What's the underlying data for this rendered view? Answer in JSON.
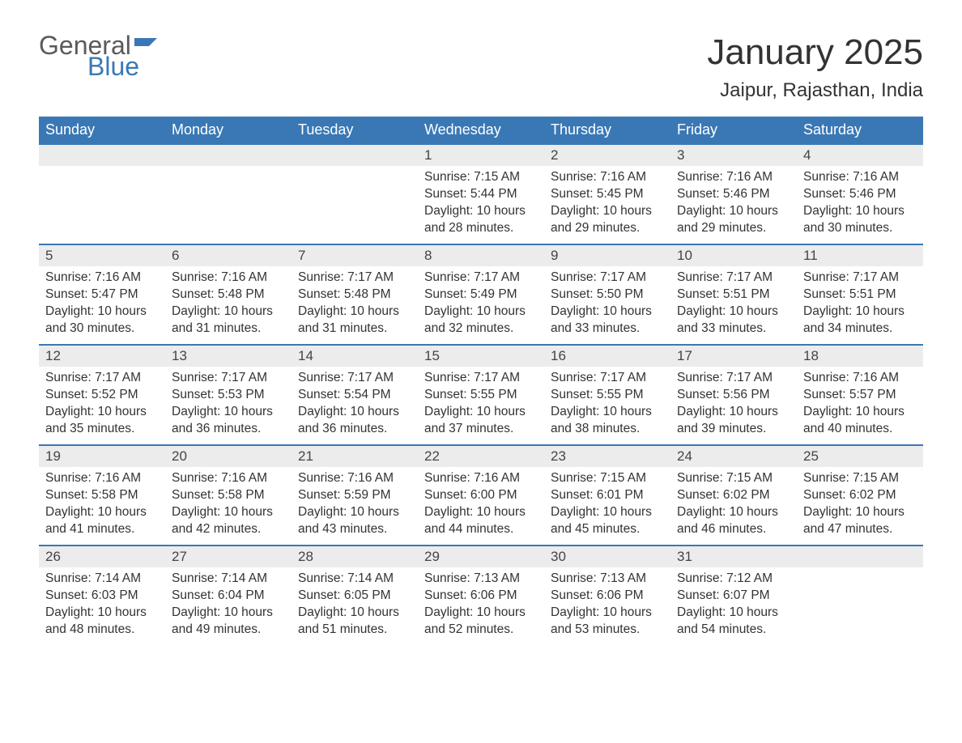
{
  "logo": {
    "general": "General",
    "blue": "Blue",
    "flag_color": "#3a78b5"
  },
  "title": "January 2025",
  "location": "Jaipur, Rajasthan, India",
  "columns": [
    "Sunday",
    "Monday",
    "Tuesday",
    "Wednesday",
    "Thursday",
    "Friday",
    "Saturday"
  ],
  "colors": {
    "header_bg": "#3a78b5",
    "header_text": "#ffffff",
    "daynum_bg": "#ececec",
    "row_border": "#3a78b5",
    "text": "#333333",
    "page_bg": "#ffffff"
  },
  "fonts": {
    "title_size_pt": 33,
    "location_size_pt": 18,
    "header_size_pt": 14,
    "daynum_size_pt": 13,
    "body_size_pt": 12
  },
  "weeks": [
    [
      null,
      null,
      null,
      {
        "d": "1",
        "sr": "Sunrise: 7:15 AM",
        "ss": "Sunset: 5:44 PM",
        "dl1": "Daylight: 10 hours",
        "dl2": "and 28 minutes."
      },
      {
        "d": "2",
        "sr": "Sunrise: 7:16 AM",
        "ss": "Sunset: 5:45 PM",
        "dl1": "Daylight: 10 hours",
        "dl2": "and 29 minutes."
      },
      {
        "d": "3",
        "sr": "Sunrise: 7:16 AM",
        "ss": "Sunset: 5:46 PM",
        "dl1": "Daylight: 10 hours",
        "dl2": "and 29 minutes."
      },
      {
        "d": "4",
        "sr": "Sunrise: 7:16 AM",
        "ss": "Sunset: 5:46 PM",
        "dl1": "Daylight: 10 hours",
        "dl2": "and 30 minutes."
      }
    ],
    [
      {
        "d": "5",
        "sr": "Sunrise: 7:16 AM",
        "ss": "Sunset: 5:47 PM",
        "dl1": "Daylight: 10 hours",
        "dl2": "and 30 minutes."
      },
      {
        "d": "6",
        "sr": "Sunrise: 7:16 AM",
        "ss": "Sunset: 5:48 PM",
        "dl1": "Daylight: 10 hours",
        "dl2": "and 31 minutes."
      },
      {
        "d": "7",
        "sr": "Sunrise: 7:17 AM",
        "ss": "Sunset: 5:48 PM",
        "dl1": "Daylight: 10 hours",
        "dl2": "and 31 minutes."
      },
      {
        "d": "8",
        "sr": "Sunrise: 7:17 AM",
        "ss": "Sunset: 5:49 PM",
        "dl1": "Daylight: 10 hours",
        "dl2": "and 32 minutes."
      },
      {
        "d": "9",
        "sr": "Sunrise: 7:17 AM",
        "ss": "Sunset: 5:50 PM",
        "dl1": "Daylight: 10 hours",
        "dl2": "and 33 minutes."
      },
      {
        "d": "10",
        "sr": "Sunrise: 7:17 AM",
        "ss": "Sunset: 5:51 PM",
        "dl1": "Daylight: 10 hours",
        "dl2": "and 33 minutes."
      },
      {
        "d": "11",
        "sr": "Sunrise: 7:17 AM",
        "ss": "Sunset: 5:51 PM",
        "dl1": "Daylight: 10 hours",
        "dl2": "and 34 minutes."
      }
    ],
    [
      {
        "d": "12",
        "sr": "Sunrise: 7:17 AM",
        "ss": "Sunset: 5:52 PM",
        "dl1": "Daylight: 10 hours",
        "dl2": "and 35 minutes."
      },
      {
        "d": "13",
        "sr": "Sunrise: 7:17 AM",
        "ss": "Sunset: 5:53 PM",
        "dl1": "Daylight: 10 hours",
        "dl2": "and 36 minutes."
      },
      {
        "d": "14",
        "sr": "Sunrise: 7:17 AM",
        "ss": "Sunset: 5:54 PM",
        "dl1": "Daylight: 10 hours",
        "dl2": "and 36 minutes."
      },
      {
        "d": "15",
        "sr": "Sunrise: 7:17 AM",
        "ss": "Sunset: 5:55 PM",
        "dl1": "Daylight: 10 hours",
        "dl2": "and 37 minutes."
      },
      {
        "d": "16",
        "sr": "Sunrise: 7:17 AM",
        "ss": "Sunset: 5:55 PM",
        "dl1": "Daylight: 10 hours",
        "dl2": "and 38 minutes."
      },
      {
        "d": "17",
        "sr": "Sunrise: 7:17 AM",
        "ss": "Sunset: 5:56 PM",
        "dl1": "Daylight: 10 hours",
        "dl2": "and 39 minutes."
      },
      {
        "d": "18",
        "sr": "Sunrise: 7:16 AM",
        "ss": "Sunset: 5:57 PM",
        "dl1": "Daylight: 10 hours",
        "dl2": "and 40 minutes."
      }
    ],
    [
      {
        "d": "19",
        "sr": "Sunrise: 7:16 AM",
        "ss": "Sunset: 5:58 PM",
        "dl1": "Daylight: 10 hours",
        "dl2": "and 41 minutes."
      },
      {
        "d": "20",
        "sr": "Sunrise: 7:16 AM",
        "ss": "Sunset: 5:58 PM",
        "dl1": "Daylight: 10 hours",
        "dl2": "and 42 minutes."
      },
      {
        "d": "21",
        "sr": "Sunrise: 7:16 AM",
        "ss": "Sunset: 5:59 PM",
        "dl1": "Daylight: 10 hours",
        "dl2": "and 43 minutes."
      },
      {
        "d": "22",
        "sr": "Sunrise: 7:16 AM",
        "ss": "Sunset: 6:00 PM",
        "dl1": "Daylight: 10 hours",
        "dl2": "and 44 minutes."
      },
      {
        "d": "23",
        "sr": "Sunrise: 7:15 AM",
        "ss": "Sunset: 6:01 PM",
        "dl1": "Daylight: 10 hours",
        "dl2": "and 45 minutes."
      },
      {
        "d": "24",
        "sr": "Sunrise: 7:15 AM",
        "ss": "Sunset: 6:02 PM",
        "dl1": "Daylight: 10 hours",
        "dl2": "and 46 minutes."
      },
      {
        "d": "25",
        "sr": "Sunrise: 7:15 AM",
        "ss": "Sunset: 6:02 PM",
        "dl1": "Daylight: 10 hours",
        "dl2": "and 47 minutes."
      }
    ],
    [
      {
        "d": "26",
        "sr": "Sunrise: 7:14 AM",
        "ss": "Sunset: 6:03 PM",
        "dl1": "Daylight: 10 hours",
        "dl2": "and 48 minutes."
      },
      {
        "d": "27",
        "sr": "Sunrise: 7:14 AM",
        "ss": "Sunset: 6:04 PM",
        "dl1": "Daylight: 10 hours",
        "dl2": "and 49 minutes."
      },
      {
        "d": "28",
        "sr": "Sunrise: 7:14 AM",
        "ss": "Sunset: 6:05 PM",
        "dl1": "Daylight: 10 hours",
        "dl2": "and 51 minutes."
      },
      {
        "d": "29",
        "sr": "Sunrise: 7:13 AM",
        "ss": "Sunset: 6:06 PM",
        "dl1": "Daylight: 10 hours",
        "dl2": "and 52 minutes."
      },
      {
        "d": "30",
        "sr": "Sunrise: 7:13 AM",
        "ss": "Sunset: 6:06 PM",
        "dl1": "Daylight: 10 hours",
        "dl2": "and 53 minutes."
      },
      {
        "d": "31",
        "sr": "Sunrise: 7:12 AM",
        "ss": "Sunset: 6:07 PM",
        "dl1": "Daylight: 10 hours",
        "dl2": "and 54 minutes."
      },
      null
    ]
  ]
}
